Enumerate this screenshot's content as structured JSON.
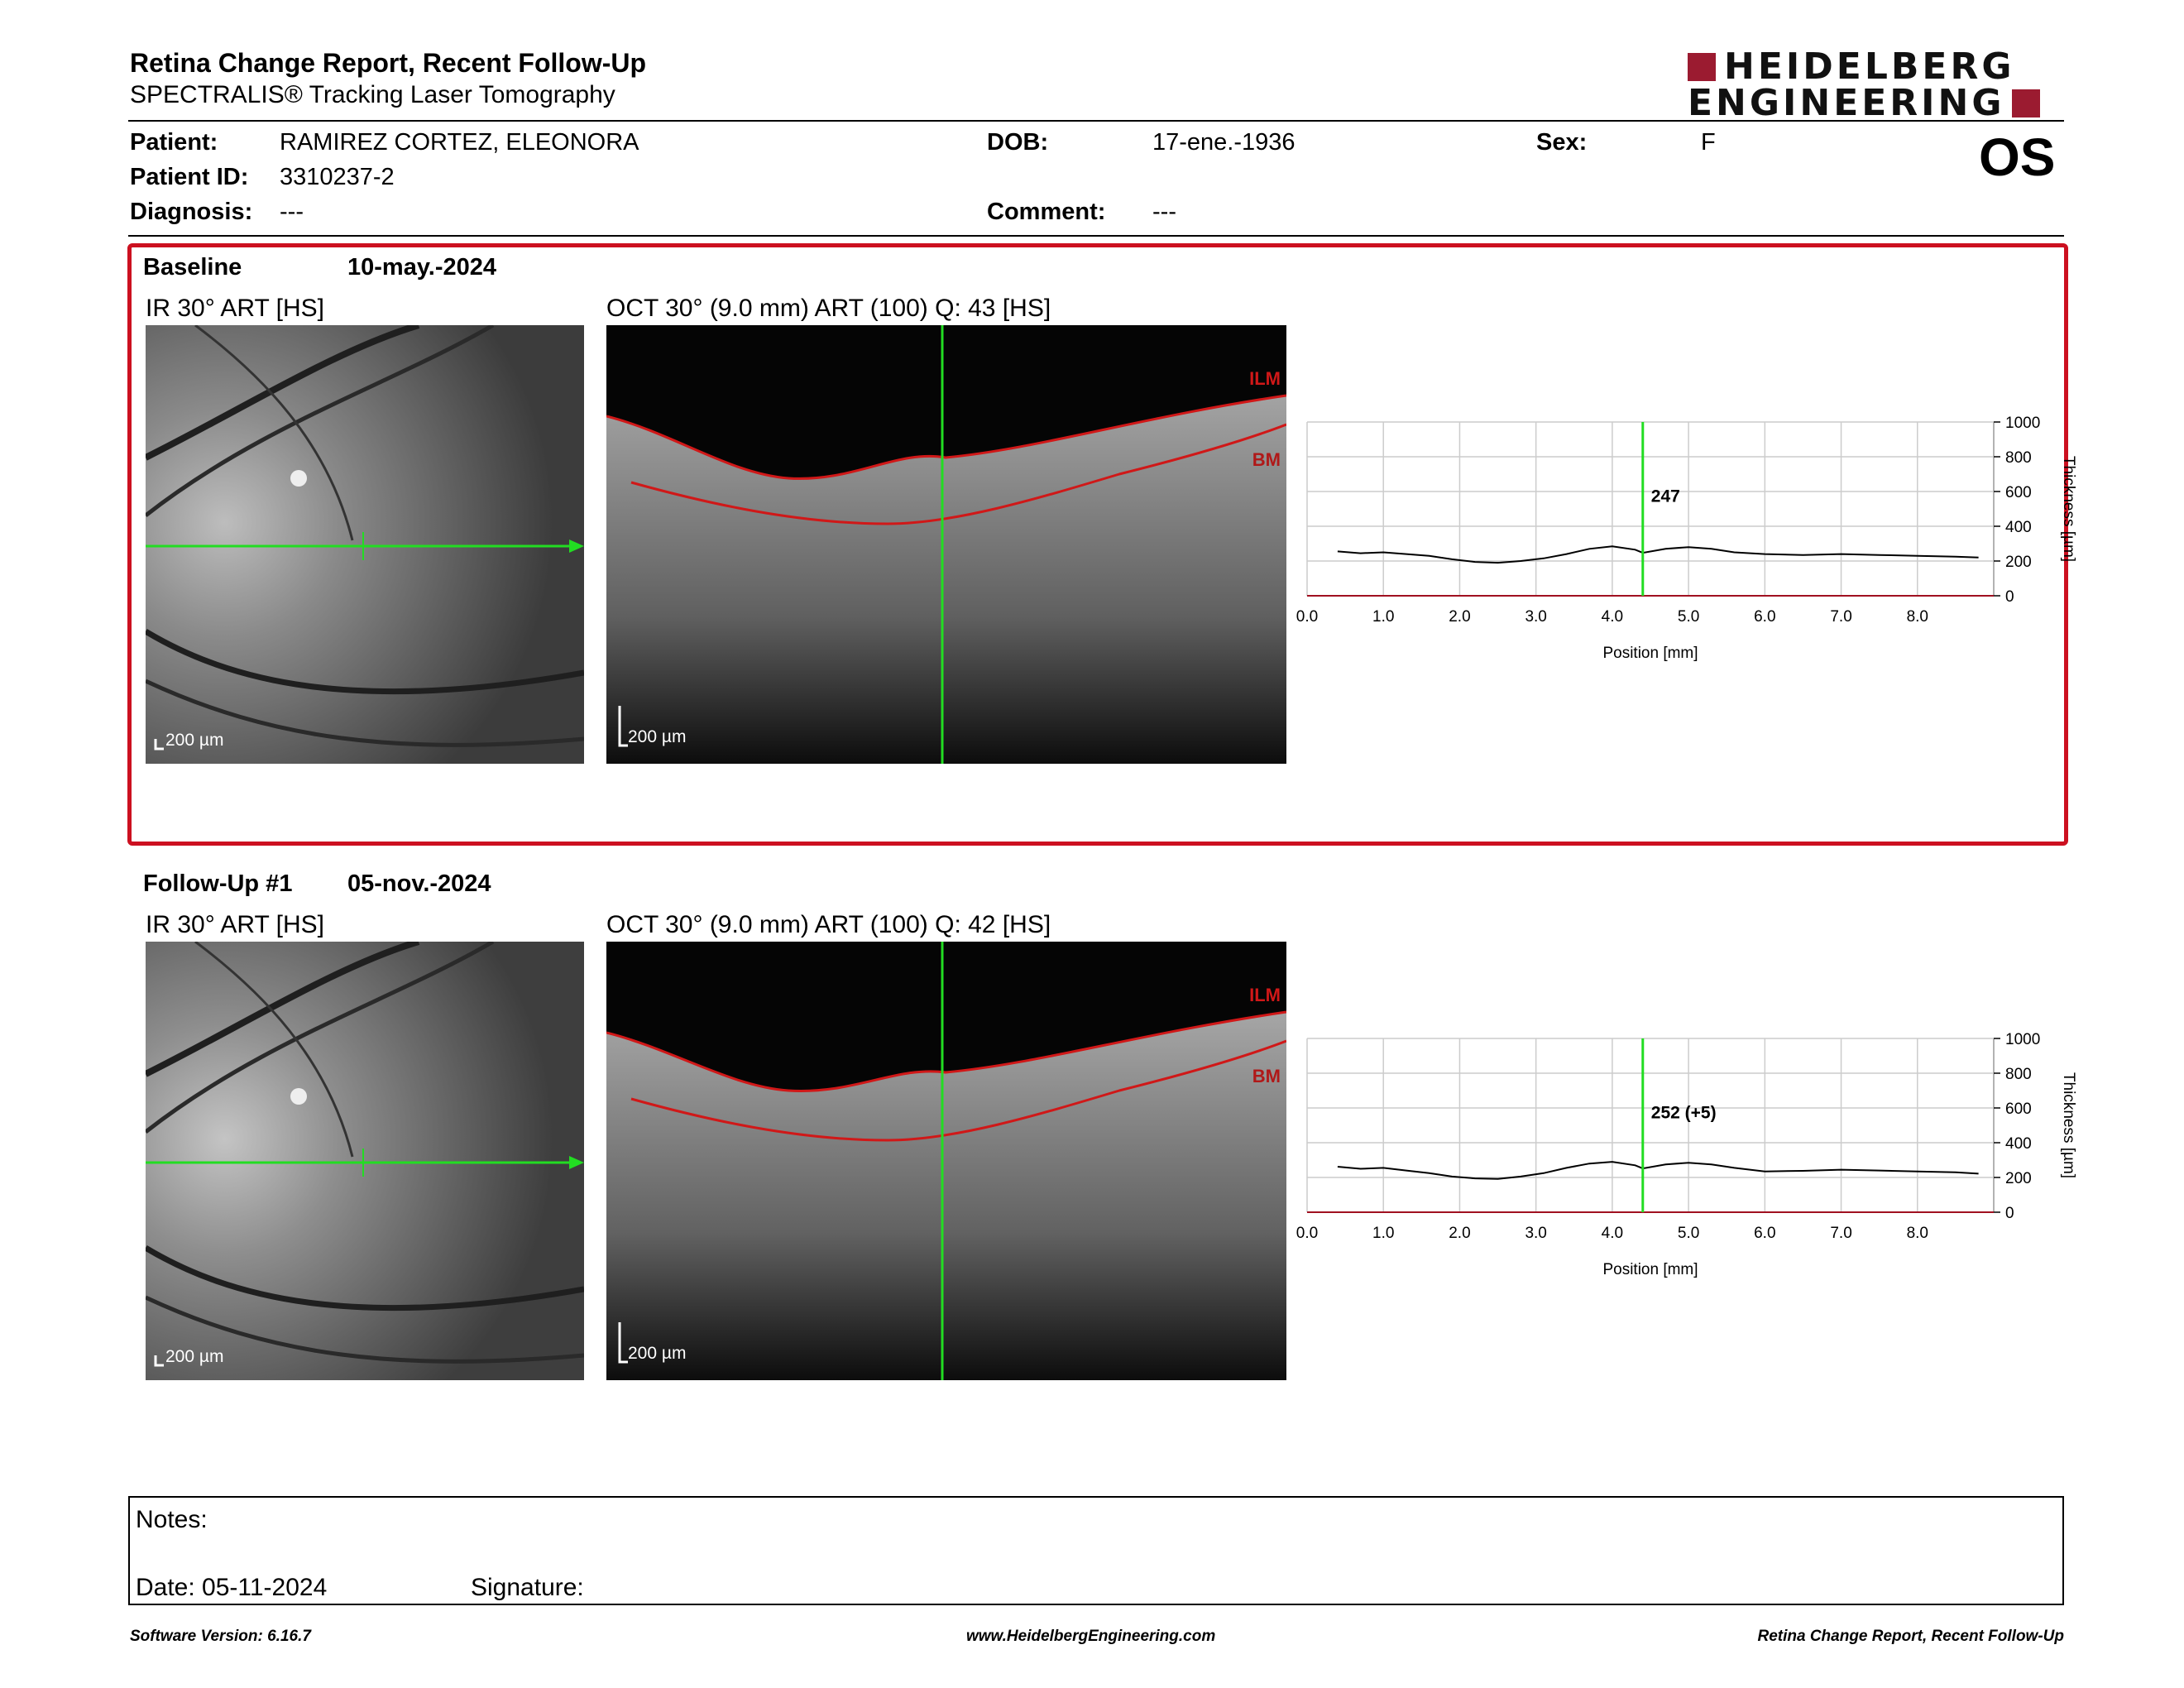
{
  "header": {
    "title": "Retina Change Report, Recent Follow-Up",
    "subtitle": "SPECTRALIS® Tracking Laser Tomography",
    "logo_line1": "HEIDELBERG",
    "logo_line2": "ENGINEERING"
  },
  "patient": {
    "patient_label": "Patient:",
    "patient_value": "RAMIREZ CORTEZ, ELEONORA",
    "dob_label": "DOB:",
    "dob_value": "17-ene.-1936",
    "sex_label": "Sex:",
    "sex_value": "F",
    "id_label": "Patient ID:",
    "id_value": "3310237-2",
    "diagnosis_label": "Diagnosis:",
    "diagnosis_value": "---",
    "comment_label": "Comment:",
    "comment_value": "---",
    "eye": "OS"
  },
  "baseline": {
    "label": "Baseline",
    "date": "10-may.-2024",
    "ir_title": "IR 30° ART [HS]",
    "oct_title": "OCT 30° (9.0 mm) ART (100) Q: 43 [HS]",
    "scale": "200 µm",
    "ilm": "ILM",
    "bm": "BM",
    "thickness_value": "247"
  },
  "followup": {
    "label": "Follow-Up #1",
    "date": "05-nov.-2024",
    "ir_title": "IR 30° ART [HS]",
    "oct_title": "OCT 30° (9.0 mm) ART (100) Q: 42 [HS]",
    "scale": "200 µm",
    "ilm": "ILM",
    "bm": "BM",
    "thickness_value": "252 (+5)"
  },
  "chart_data": [
    {
      "type": "line",
      "xlabel": "Position [mm]",
      "ylabel": "Thickness [µm]",
      "xlim": [
        0,
        9
      ],
      "ylim": [
        0,
        1000
      ],
      "x_ticks": [
        "0.0",
        "1.0",
        "2.0",
        "3.0",
        "4.0",
        "5.0",
        "6.0",
        "7.0",
        "8.0"
      ],
      "y_ticks": [
        "0",
        "200",
        "400",
        "600",
        "800",
        "1000"
      ],
      "grid": true,
      "cursor_x": 4.4,
      "cursor_label": "247",
      "series": [
        {
          "x": [
            0.4,
            0.7,
            1.0,
            1.3,
            1.6,
            1.9,
            2.2,
            2.5,
            2.8,
            3.1,
            3.4,
            3.7,
            4.0,
            4.3,
            4.4,
            4.7,
            5.0,
            5.3,
            5.6,
            6.0,
            6.5,
            7.0,
            7.5,
            8.0,
            8.5,
            8.8
          ],
          "values": [
            255,
            245,
            250,
            240,
            230,
            210,
            195,
            190,
            200,
            215,
            240,
            270,
            285,
            265,
            247,
            270,
            280,
            270,
            250,
            240,
            235,
            240,
            235,
            230,
            225,
            220
          ]
        }
      ]
    },
    {
      "type": "line",
      "xlabel": "Position [mm]",
      "ylabel": "Thickness [µm]",
      "xlim": [
        0,
        9
      ],
      "ylim": [
        0,
        1000
      ],
      "x_ticks": [
        "0.0",
        "1.0",
        "2.0",
        "3.0",
        "4.0",
        "5.0",
        "6.0",
        "7.0",
        "8.0"
      ],
      "y_ticks": [
        "0",
        "200",
        "400",
        "600",
        "800",
        "1000"
      ],
      "grid": true,
      "cursor_x": 4.4,
      "cursor_label": "252 (+5)",
      "series": [
        {
          "x": [
            0.4,
            0.7,
            1.0,
            1.3,
            1.6,
            1.9,
            2.2,
            2.5,
            2.8,
            3.1,
            3.4,
            3.7,
            4.0,
            4.3,
            4.4,
            4.7,
            5.0,
            5.3,
            5.6,
            6.0,
            6.5,
            7.0,
            7.5,
            8.0,
            8.5,
            8.8
          ],
          "values": [
            262,
            250,
            255,
            240,
            225,
            205,
            195,
            192,
            205,
            225,
            255,
            280,
            290,
            270,
            252,
            275,
            285,
            275,
            255,
            235,
            238,
            245,
            240,
            235,
            230,
            222
          ]
        }
      ]
    }
  ],
  "notes": {
    "notes_label": "Notes:",
    "date_label": "Date: 05-11-2024",
    "signature_label": "Signature:"
  },
  "footer": {
    "left": "Software Version: 6.16.7",
    "center": "www.HeidelbergEngineering.com",
    "right": "Retina Change Report, Recent Follow-Up"
  },
  "colors": {
    "accent_red": "#cc1020",
    "logo_red": "#9b1b30",
    "cursor_green": "#22dd22"
  }
}
